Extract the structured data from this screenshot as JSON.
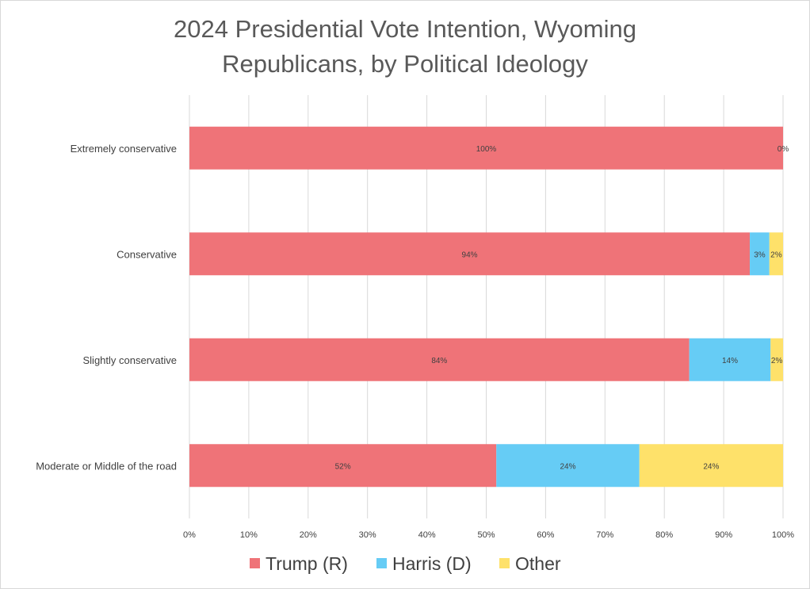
{
  "chart_data": {
    "type": "bar",
    "orientation": "horizontal",
    "stacked": "percent",
    "title_lines": [
      "2024 Presidential Vote Intention, Wyoming",
      "Republicans, by Political Ideology"
    ],
    "categories": [
      "Extremely conservative",
      "Conservative",
      "Slightly conservative",
      "Moderate or Middle of the road"
    ],
    "series": [
      {
        "name": "Trump (R)",
        "color": "#ef7378",
        "values": [
          100,
          94.4,
          84.2,
          51.7
        ],
        "labels": [
          "100%",
          "94%",
          "84%",
          "52%"
        ]
      },
      {
        "name": "Harris (D)",
        "color": "#66ccf5",
        "values": [
          0,
          3.3,
          13.7,
          24.1
        ],
        "labels": [
          "0%",
          "3%",
          "14%",
          "24%"
        ]
      },
      {
        "name": "Other",
        "color": "#fee16a",
        "values": [
          0,
          2.3,
          2.1,
          24.2
        ],
        "labels": [
          "",
          "2%",
          "2%",
          "24%"
        ]
      }
    ],
    "xlim": [
      0,
      100
    ],
    "x_ticks": [
      "0%",
      "10%",
      "20%",
      "30%",
      "40%",
      "50%",
      "60%",
      "70%",
      "80%",
      "90%",
      "100%"
    ],
    "grid": true,
    "legend_position": "bottom"
  }
}
